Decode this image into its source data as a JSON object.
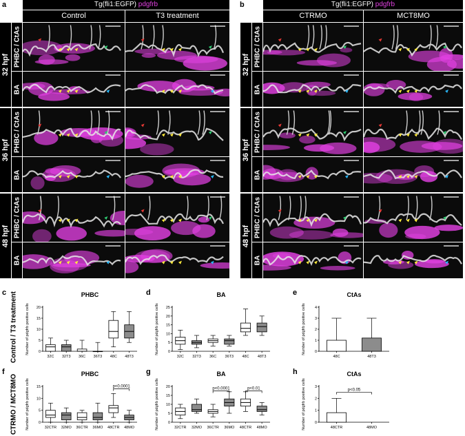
{
  "panels": {
    "a": "a",
    "b": "b",
    "c": "c",
    "d": "d",
    "e": "e",
    "f": "f",
    "g": "g",
    "h": "h"
  },
  "header": {
    "transgene": "Tg(fli1:EGFP)",
    "marker": "pdgfrb",
    "left_conditions": [
      "Control",
      "T3 treatment"
    ],
    "right_conditions": [
      "CTRMO",
      "MCT8MO"
    ]
  },
  "stages": [
    "32 hpf",
    "36 hpf",
    "48 hpf"
  ],
  "regions": [
    "PHBC / CtAs",
    "BA"
  ],
  "row_labels": {
    "top": "Control / T3 treatment",
    "bottom": "CTRMO / MCT8MO"
  },
  "colors": {
    "magenta": "#e040e0",
    "gray_fill": "#8c8c8c",
    "arrow_red": "#e53935",
    "arrow_green": "#2ecc71",
    "arrow_cyan": "#29b6f6",
    "arrow_yellow": "#ffeb3b"
  },
  "chart_data": [
    {
      "id": "c",
      "type": "box",
      "title": "PHBC",
      "ylabel": "Number of pdgfrb positive cells",
      "ylim": [
        0,
        20
      ],
      "yticks": [
        0,
        5,
        10,
        15,
        20
      ],
      "categories": [
        "32C",
        "32T3",
        "36C",
        "36T3",
        "48C",
        "48T3"
      ],
      "boxes": [
        {
          "min": 0,
          "q1": 0,
          "median": 2,
          "q3": 3,
          "max": 6,
          "fill": "white"
        },
        {
          "min": 0,
          "q1": 0,
          "median": 2,
          "q3": 3,
          "max": 5,
          "fill": "gray"
        },
        {
          "min": 0,
          "q1": 0,
          "median": 0,
          "q3": 1,
          "max": 5,
          "fill": "white"
        },
        {
          "min": 0,
          "q1": 0,
          "median": 0,
          "q3": 0,
          "max": 4,
          "fill": "gray"
        },
        {
          "min": 2,
          "q1": 6,
          "median": 9,
          "q3": 14,
          "max": 18,
          "fill": "white"
        },
        {
          "min": 4,
          "q1": 6,
          "median": 9,
          "q3": 12,
          "max": 18,
          "fill": "gray"
        }
      ],
      "annotations": []
    },
    {
      "id": "d",
      "type": "box",
      "title": "BA",
      "ylabel": "Number of pdgfrb positive cells",
      "ylim": [
        0,
        25
      ],
      "yticks": [
        0,
        5,
        10,
        15,
        20,
        25
      ],
      "categories": [
        "32C",
        "32T3",
        "36C",
        "36T3",
        "48C",
        "48T3"
      ],
      "boxes": [
        {
          "min": 1,
          "q1": 4,
          "median": 6,
          "q3": 8,
          "max": 12,
          "fill": "white"
        },
        {
          "min": 2,
          "q1": 4,
          "median": 5,
          "q3": 6,
          "max": 9,
          "fill": "gray"
        },
        {
          "min": 3,
          "q1": 5,
          "median": 6,
          "q3": 7,
          "max": 9,
          "fill": "white"
        },
        {
          "min": 3,
          "q1": 4,
          "median": 6,
          "q3": 7,
          "max": 9,
          "fill": "gray"
        },
        {
          "min": 9,
          "q1": 11,
          "median": 13,
          "q3": 16,
          "max": 24,
          "fill": "white"
        },
        {
          "min": 9,
          "q1": 11,
          "median": 14,
          "q3": 16,
          "max": 20,
          "fill": "gray"
        }
      ],
      "annotations": []
    },
    {
      "id": "e",
      "type": "bar",
      "title": "CtAs",
      "ylabel": "Number of pdgfrb positive cells",
      "ylim": [
        0,
        4
      ],
      "yticks": [
        0,
        1,
        2,
        3,
        4
      ],
      "categories": [
        "48C",
        "48T3"
      ],
      "bars": [
        {
          "value": 1.0,
          "err": 3,
          "fill": "white"
        },
        {
          "value": 1.2,
          "err": 3,
          "fill": "gray"
        }
      ],
      "annotations": []
    },
    {
      "id": "f",
      "type": "box",
      "title": "PHBC",
      "ylabel": "Number of pdgfrb positive cells",
      "ylim": [
        0,
        15
      ],
      "yticks": [
        0,
        5,
        10,
        15
      ],
      "categories": [
        "32CTR",
        "32MO",
        "36CTR",
        "36MO",
        "48CTR",
        "48MO"
      ],
      "boxes": [
        {
          "min": 0,
          "q1": 2,
          "median": 3,
          "q3": 5,
          "max": 8,
          "fill": "white"
        },
        {
          "min": 0,
          "q1": 1,
          "median": 3,
          "q3": 4,
          "max": 6,
          "fill": "gray"
        },
        {
          "min": 0,
          "q1": 1,
          "median": 2,
          "q3": 4,
          "max": 5,
          "fill": "white"
        },
        {
          "min": 0,
          "q1": 1,
          "median": 2,
          "q3": 4,
          "max": 8,
          "fill": "gray"
        },
        {
          "min": 2,
          "q1": 4,
          "median": 6,
          "q3": 7,
          "max": 12,
          "fill": "white"
        },
        {
          "min": 0,
          "q1": 1,
          "median": 2,
          "q3": 3,
          "max": 5,
          "fill": "gray"
        }
      ],
      "annotations": [
        {
          "from": 4,
          "to": 5,
          "text": "p<0.0001",
          "level": 14
        }
      ]
    },
    {
      "id": "g",
      "type": "box",
      "title": "BA",
      "ylabel": "Number of pdgfrb positive cells",
      "ylim": [
        0,
        20
      ],
      "yticks": [
        0,
        5,
        10,
        15,
        20
      ],
      "categories": [
        "32CTR",
        "32MO",
        "36CTR",
        "36MO",
        "48CTR",
        "48MO"
      ],
      "boxes": [
        {
          "min": 2,
          "q1": 4,
          "median": 6,
          "q3": 8,
          "max": 10,
          "fill": "white"
        },
        {
          "min": 5,
          "q1": 6,
          "median": 7,
          "q3": 10,
          "max": 13,
          "fill": "gray"
        },
        {
          "min": 3,
          "q1": 5,
          "median": 6,
          "q3": 7,
          "max": 10,
          "fill": "white"
        },
        {
          "min": 5,
          "q1": 9,
          "median": 11,
          "q3": 13,
          "max": 17,
          "fill": "gray"
        },
        {
          "min": 6,
          "q1": 9,
          "median": 11,
          "q3": 13,
          "max": 17,
          "fill": "white"
        },
        {
          "min": 4,
          "q1": 6,
          "median": 7,
          "q3": 9,
          "max": 11,
          "fill": "gray"
        }
      ],
      "annotations": [
        {
          "from": 2,
          "to": 3,
          "text": "p<0.0001",
          "level": 17.5
        },
        {
          "from": 4,
          "to": 5,
          "text": "p<0.01",
          "level": 17.5
        }
      ]
    },
    {
      "id": "h",
      "type": "bar",
      "title": "CtAs",
      "ylabel": "Number of pdgfrb positive cells",
      "ylim": [
        0,
        3
      ],
      "yticks": [
        0,
        1,
        2,
        3
      ],
      "categories": [
        "48CTR",
        "48MO"
      ],
      "bars": [
        {
          "value": 0.8,
          "err": 2,
          "fill": "white"
        },
        {
          "value": 0,
          "err": 0,
          "fill": "gray"
        }
      ],
      "annotations": [
        {
          "from": 0,
          "to": 1,
          "text": "p<0.05",
          "level": 2.5
        }
      ]
    }
  ]
}
